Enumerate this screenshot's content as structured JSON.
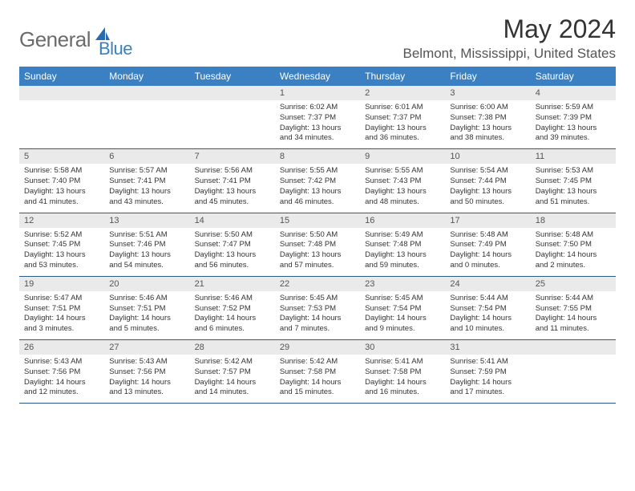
{
  "logo": {
    "part1": "General",
    "part2": "Blue"
  },
  "title": "May 2024",
  "location": "Belmont, Mississippi, United States",
  "header_bg": "#3a80c3",
  "day_names": [
    "Sunday",
    "Monday",
    "Tuesday",
    "Wednesday",
    "Thursday",
    "Friday",
    "Saturday"
  ],
  "weeks": [
    [
      {
        "empty": true
      },
      {
        "empty": true
      },
      {
        "empty": true
      },
      {
        "day": "1",
        "sunrise": "Sunrise: 6:02 AM",
        "sunset": "Sunset: 7:37 PM",
        "daylight": "Daylight: 13 hours and 34 minutes."
      },
      {
        "day": "2",
        "sunrise": "Sunrise: 6:01 AM",
        "sunset": "Sunset: 7:37 PM",
        "daylight": "Daylight: 13 hours and 36 minutes."
      },
      {
        "day": "3",
        "sunrise": "Sunrise: 6:00 AM",
        "sunset": "Sunset: 7:38 PM",
        "daylight": "Daylight: 13 hours and 38 minutes."
      },
      {
        "day": "4",
        "sunrise": "Sunrise: 5:59 AM",
        "sunset": "Sunset: 7:39 PM",
        "daylight": "Daylight: 13 hours and 39 minutes."
      }
    ],
    [
      {
        "day": "5",
        "sunrise": "Sunrise: 5:58 AM",
        "sunset": "Sunset: 7:40 PM",
        "daylight": "Daylight: 13 hours and 41 minutes."
      },
      {
        "day": "6",
        "sunrise": "Sunrise: 5:57 AM",
        "sunset": "Sunset: 7:41 PM",
        "daylight": "Daylight: 13 hours and 43 minutes."
      },
      {
        "day": "7",
        "sunrise": "Sunrise: 5:56 AM",
        "sunset": "Sunset: 7:41 PM",
        "daylight": "Daylight: 13 hours and 45 minutes."
      },
      {
        "day": "8",
        "sunrise": "Sunrise: 5:55 AM",
        "sunset": "Sunset: 7:42 PM",
        "daylight": "Daylight: 13 hours and 46 minutes."
      },
      {
        "day": "9",
        "sunrise": "Sunrise: 5:55 AM",
        "sunset": "Sunset: 7:43 PM",
        "daylight": "Daylight: 13 hours and 48 minutes."
      },
      {
        "day": "10",
        "sunrise": "Sunrise: 5:54 AM",
        "sunset": "Sunset: 7:44 PM",
        "daylight": "Daylight: 13 hours and 50 minutes."
      },
      {
        "day": "11",
        "sunrise": "Sunrise: 5:53 AM",
        "sunset": "Sunset: 7:45 PM",
        "daylight": "Daylight: 13 hours and 51 minutes."
      }
    ],
    [
      {
        "day": "12",
        "sunrise": "Sunrise: 5:52 AM",
        "sunset": "Sunset: 7:45 PM",
        "daylight": "Daylight: 13 hours and 53 minutes."
      },
      {
        "day": "13",
        "sunrise": "Sunrise: 5:51 AM",
        "sunset": "Sunset: 7:46 PM",
        "daylight": "Daylight: 13 hours and 54 minutes."
      },
      {
        "day": "14",
        "sunrise": "Sunrise: 5:50 AM",
        "sunset": "Sunset: 7:47 PM",
        "daylight": "Daylight: 13 hours and 56 minutes."
      },
      {
        "day": "15",
        "sunrise": "Sunrise: 5:50 AM",
        "sunset": "Sunset: 7:48 PM",
        "daylight": "Daylight: 13 hours and 57 minutes."
      },
      {
        "day": "16",
        "sunrise": "Sunrise: 5:49 AM",
        "sunset": "Sunset: 7:48 PM",
        "daylight": "Daylight: 13 hours and 59 minutes."
      },
      {
        "day": "17",
        "sunrise": "Sunrise: 5:48 AM",
        "sunset": "Sunset: 7:49 PM",
        "daylight": "Daylight: 14 hours and 0 minutes."
      },
      {
        "day": "18",
        "sunrise": "Sunrise: 5:48 AM",
        "sunset": "Sunset: 7:50 PM",
        "daylight": "Daylight: 14 hours and 2 minutes."
      }
    ],
    [
      {
        "day": "19",
        "sunrise": "Sunrise: 5:47 AM",
        "sunset": "Sunset: 7:51 PM",
        "daylight": "Daylight: 14 hours and 3 minutes."
      },
      {
        "day": "20",
        "sunrise": "Sunrise: 5:46 AM",
        "sunset": "Sunset: 7:51 PM",
        "daylight": "Daylight: 14 hours and 5 minutes."
      },
      {
        "day": "21",
        "sunrise": "Sunrise: 5:46 AM",
        "sunset": "Sunset: 7:52 PM",
        "daylight": "Daylight: 14 hours and 6 minutes."
      },
      {
        "day": "22",
        "sunrise": "Sunrise: 5:45 AM",
        "sunset": "Sunset: 7:53 PM",
        "daylight": "Daylight: 14 hours and 7 minutes."
      },
      {
        "day": "23",
        "sunrise": "Sunrise: 5:45 AM",
        "sunset": "Sunset: 7:54 PM",
        "daylight": "Daylight: 14 hours and 9 minutes."
      },
      {
        "day": "24",
        "sunrise": "Sunrise: 5:44 AM",
        "sunset": "Sunset: 7:54 PM",
        "daylight": "Daylight: 14 hours and 10 minutes."
      },
      {
        "day": "25",
        "sunrise": "Sunrise: 5:44 AM",
        "sunset": "Sunset: 7:55 PM",
        "daylight": "Daylight: 14 hours and 11 minutes."
      }
    ],
    [
      {
        "day": "26",
        "sunrise": "Sunrise: 5:43 AM",
        "sunset": "Sunset: 7:56 PM",
        "daylight": "Daylight: 14 hours and 12 minutes."
      },
      {
        "day": "27",
        "sunrise": "Sunrise: 5:43 AM",
        "sunset": "Sunset: 7:56 PM",
        "daylight": "Daylight: 14 hours and 13 minutes."
      },
      {
        "day": "28",
        "sunrise": "Sunrise: 5:42 AM",
        "sunset": "Sunset: 7:57 PM",
        "daylight": "Daylight: 14 hours and 14 minutes."
      },
      {
        "day": "29",
        "sunrise": "Sunrise: 5:42 AM",
        "sunset": "Sunset: 7:58 PM",
        "daylight": "Daylight: 14 hours and 15 minutes."
      },
      {
        "day": "30",
        "sunrise": "Sunrise: 5:41 AM",
        "sunset": "Sunset: 7:58 PM",
        "daylight": "Daylight: 14 hours and 16 minutes."
      },
      {
        "day": "31",
        "sunrise": "Sunrise: 5:41 AM",
        "sunset": "Sunset: 7:59 PM",
        "daylight": "Daylight: 14 hours and 17 minutes."
      },
      {
        "empty": true
      }
    ]
  ]
}
